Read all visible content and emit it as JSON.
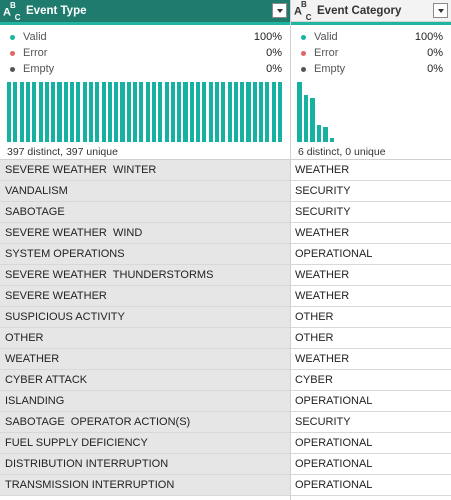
{
  "columns": [
    {
      "name": "Event Type",
      "type_icon": "text-type-icon",
      "stats": {
        "valid_label": "Valid",
        "valid_pct": "100%",
        "error_label": "Error",
        "error_pct": "0%",
        "empty_label": "Empty",
        "empty_pct": "0%"
      },
      "distribution": [
        1,
        1,
        1,
        1,
        1,
        1,
        1,
        1,
        1,
        1,
        1,
        1,
        1,
        1,
        1,
        1,
        1,
        1,
        1,
        1,
        1,
        1,
        1,
        1,
        1,
        1,
        1,
        1,
        1,
        1,
        1,
        1,
        1,
        1,
        1,
        1,
        1,
        1,
        1,
        1,
        1,
        1,
        1,
        1
      ],
      "distinct_text": "397 distinct, 397 unique",
      "rows": [
        "SEVERE WEATHER  WINTER",
        "VANDALISM",
        "SABOTAGE",
        "SEVERE WEATHER  WIND",
        "SYSTEM OPERATIONS",
        "SEVERE WEATHER  THUNDERSTORMS",
        "SEVERE WEATHER",
        "SUSPICIOUS ACTIVITY",
        "OTHER",
        "WEATHER",
        "CYBER ATTACK",
        "ISLANDING",
        "SABOTAGE  OPERATOR ACTION(S)",
        "FUEL SUPPLY DEFICIENCY",
        "DISTRIBUTION INTERRUPTION",
        "TRANSMISSION INTERRUPTION"
      ]
    },
    {
      "name": "Event Category",
      "type_icon": "text-type-icon",
      "stats": {
        "valid_label": "Valid",
        "valid_pct": "100%",
        "error_label": "Error",
        "error_pct": "0%",
        "empty_label": "Empty",
        "empty_pct": "0%"
      },
      "distribution": [
        1.0,
        0.78,
        0.73,
        0.28,
        0.25,
        0.07
      ],
      "distinct_text": "6 distinct, 0 unique",
      "rows": [
        "WEATHER",
        "SECURITY",
        "SECURITY",
        "WEATHER",
        "OPERATIONAL",
        "WEATHER",
        "WEATHER",
        "OTHER",
        "OTHER",
        "WEATHER",
        "CYBER",
        "OPERATIONAL",
        "SECURITY",
        "OPERATIONAL",
        "OPERATIONAL",
        "OPERATIONAL"
      ]
    }
  ]
}
